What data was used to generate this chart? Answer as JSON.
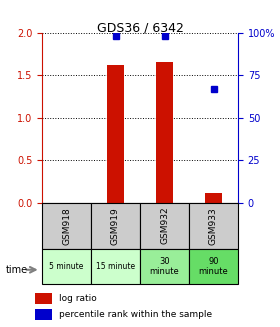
{
  "title": "GDS36 / 6342",
  "samples": [
    "GSM918",
    "GSM919",
    "GSM932",
    "GSM933"
  ],
  "time_labels": [
    "5 minute",
    "15 minute",
    "30\nminute",
    "90\nminute"
  ],
  "time_bg_colors": [
    "#ccffcc",
    "#ccffcc",
    "#99ee99",
    "#66dd66"
  ],
  "log_ratio": [
    0.0,
    1.62,
    1.65,
    0.12
  ],
  "percentile_rank": [
    null,
    98.0,
    98.0,
    67.0
  ],
  "ylim_left": [
    0,
    2
  ],
  "ylim_right": [
    0,
    100
  ],
  "yticks_left": [
    0,
    0.5,
    1.0,
    1.5,
    2.0
  ],
  "yticks_right": [
    0,
    25,
    50,
    75,
    100
  ],
  "bar_color": "#cc1100",
  "dot_color": "#0000cc",
  "bar_width": 0.35,
  "background_color": "#ffffff",
  "grid_color": "#000000",
  "sample_box_color": "#cccccc",
  "left_axis_color": "#cc1100",
  "right_axis_color": "#0000cc"
}
